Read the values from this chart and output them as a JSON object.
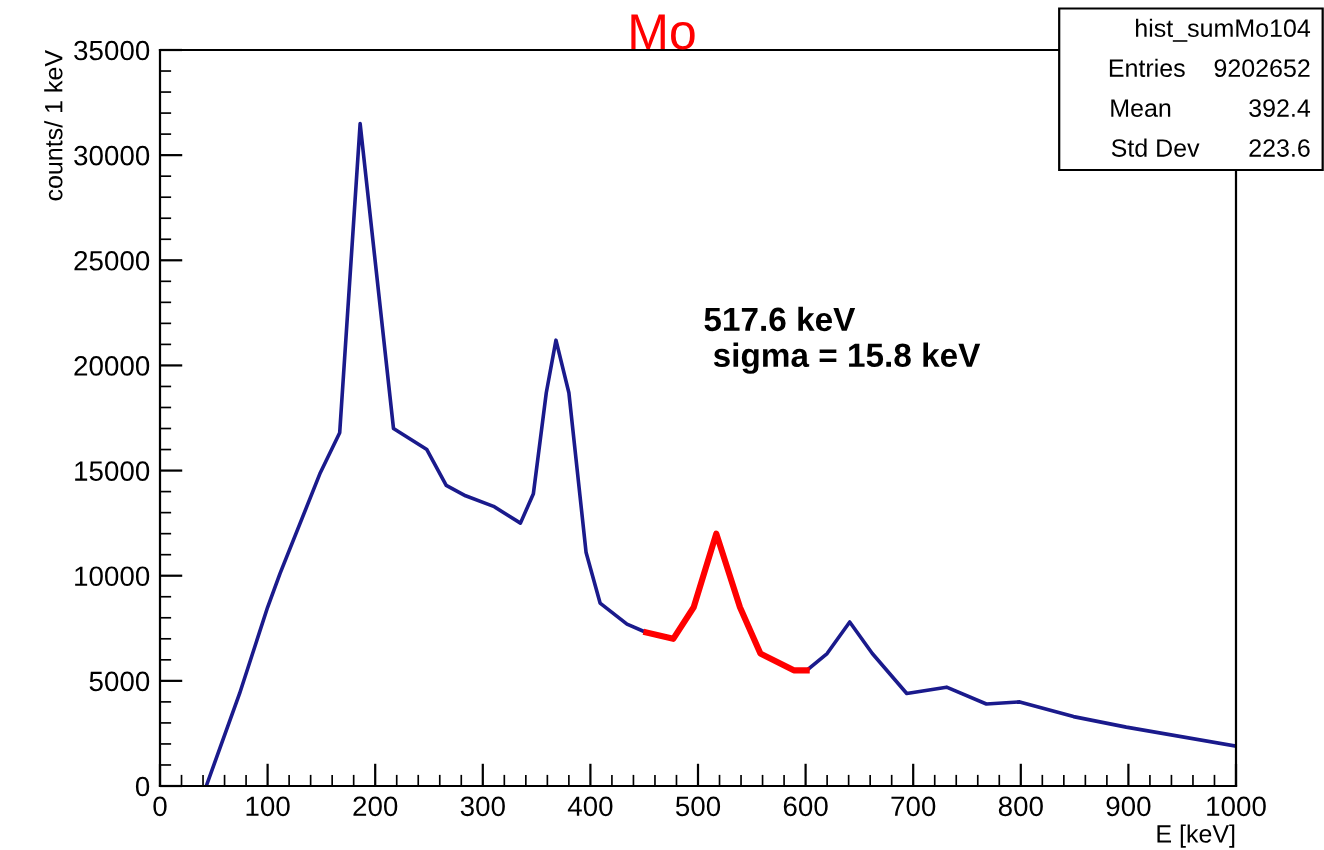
{
  "chart_data": {
    "type": "line",
    "title": "Mo",
    "xlabel": "E [keV]",
    "ylabel": "counts/ 1 keV",
    "series": [
      {
        "color": "#1a1a8c",
        "x": [
          43,
          74,
          100,
          111.5,
          149,
          167,
          186,
          217,
          248,
          266,
          284,
          310,
          335,
          347,
          359,
          368,
          380,
          396,
          409,
          434,
          452,
          477,
          496,
          517,
          539,
          558,
          589,
          601,
          620,
          641,
          662,
          694,
          731,
          768,
          799,
          849,
          898,
          1000
        ],
        "values": [
          0,
          4400,
          8500,
          10100,
          14900,
          16800,
          31500,
          17000,
          16000,
          14300,
          13800,
          13300,
          12500,
          13900,
          18700,
          21200,
          18700,
          11100,
          8700,
          7700,
          7300,
          null,
          null,
          null,
          null,
          null,
          null,
          5500,
          6300,
          7800,
          6300,
          4400,
          4700,
          3900,
          4000,
          3300,
          2800,
          1900
        ]
      },
      {
        "color": "#ff0000",
        "x": [
          452,
          477,
          496,
          517,
          539,
          558,
          589,
          601
        ],
        "values": [
          7300,
          7000,
          8500,
          12000,
          8500,
          6300,
          5500,
          5500
        ]
      }
    ],
    "xlim": [
      0,
      1000
    ],
    "xticks": [
      0,
      100,
      200,
      300,
      400,
      500,
      600,
      700,
      800,
      900,
      1000
    ],
    "ylim": [
      0,
      35000
    ],
    "yticks": [
      0,
      5000,
      10000,
      15000,
      20000,
      25000,
      30000,
      35000
    ],
    "grid": false,
    "legend": false,
    "marker": "none",
    "line_style": "solid",
    "annotations": [
      "517.6 keV\n sigma = 15.8 keV",
      "hist_sumMo104",
      "Entries    9202652",
      "Mean           392.4",
      "Std Dev       223.6"
    ]
  }
}
